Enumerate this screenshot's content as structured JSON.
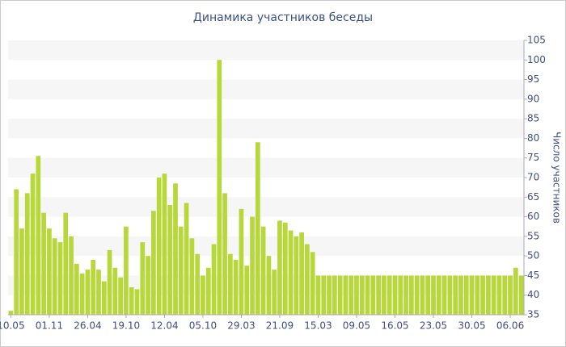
{
  "chart_data": {
    "type": "bar",
    "title": "Динамика участников беседы",
    "y_label": "Число участников",
    "categories": [
      "10.05",
      null,
      null,
      null,
      null,
      null,
      null,
      "01.11",
      null,
      null,
      null,
      null,
      null,
      null,
      "26.04",
      null,
      null,
      null,
      null,
      null,
      null,
      "19.10",
      null,
      null,
      null,
      null,
      null,
      null,
      "12.04",
      null,
      null,
      null,
      null,
      null,
      null,
      "05.10",
      null,
      null,
      null,
      null,
      null,
      null,
      "29.03",
      null,
      null,
      null,
      null,
      null,
      null,
      "21.09",
      null,
      null,
      null,
      null,
      null,
      null,
      "15.03",
      null,
      null,
      null,
      null,
      null,
      null,
      "09.05",
      null,
      null,
      null,
      null,
      null,
      null,
      "16.05",
      null,
      null,
      null,
      null,
      null,
      null,
      "23.05",
      null,
      null,
      null,
      null,
      null,
      null,
      "30.05",
      null,
      null,
      null,
      null,
      null,
      null,
      "06.06",
      null,
      null
    ],
    "values": [
      36,
      67,
      57,
      66,
      71,
      75.5,
      61,
      57,
      54.5,
      53.5,
      61,
      55,
      48,
      45.5,
      46.5,
      49,
      46.5,
      43.5,
      51.5,
      47,
      44.5,
      57.5,
      42,
      41.5,
      53.5,
      50,
      61.5,
      70,
      71,
      63,
      68.5,
      57.5,
      63.5,
      54.5,
      50.5,
      45,
      47,
      53,
      100,
      66,
      50.5,
      49,
      62,
      47.5,
      60,
      79,
      57.5,
      50,
      46.5,
      59,
      58.5,
      56.5,
      55,
      56,
      53,
      51,
      45,
      45,
      45,
      45,
      45,
      45,
      45,
      45,
      45,
      45,
      45,
      45,
      45,
      45,
      45,
      45,
      45,
      45,
      45,
      45,
      45,
      45,
      45,
      45,
      45,
      45,
      45,
      45,
      45,
      45,
      45,
      45,
      45,
      45,
      45,
      45,
      47,
      45
    ],
    "color": "#b7d73a",
    "ylim": [
      35,
      105
    ],
    "yticks": [
      35,
      40,
      45,
      50,
      55,
      60,
      65,
      70,
      75,
      80,
      85,
      90,
      95,
      100,
      105
    ],
    "grid": true
  }
}
